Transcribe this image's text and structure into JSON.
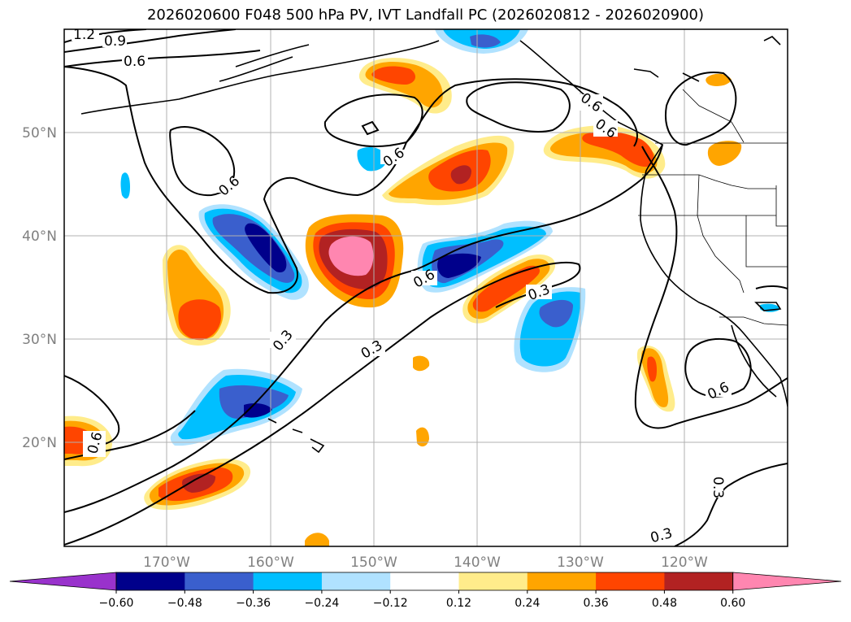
{
  "title": "2026020600 F048 500 hPa PV, IVT Landfall PC (2026020812 - 2026020900)",
  "lat_labels": [
    "50°N",
    "40°N",
    "30°N",
    "20°N"
  ],
  "lon_labels": [
    "170°W",
    "160°W",
    "150°W",
    "140°W",
    "130°W",
    "120°W"
  ],
  "contour_labels": [
    "1.2",
    "0.9",
    "0.6",
    "0.6",
    "0.6",
    "0.6",
    "0.6",
    "0.3",
    "0.3",
    "0.3",
    "0.6",
    "0.6",
    "0.3",
    "0.3",
    "0.6"
  ],
  "colorbar": {
    "ticks": [
      "−0.60",
      "−0.48",
      "−0.36",
      "−0.24",
      "−0.12",
      "0.12",
      "0.24",
      "0.36",
      "0.48",
      "0.60"
    ],
    "colors": [
      "#9932cc",
      "#00008b",
      "#3a5fcd",
      "#00bfff",
      "#b0e2ff",
      "#ffffff",
      "#ffec8b",
      "#ffa500",
      "#ff4500",
      "#b22222",
      "#ff86b0"
    ]
  }
}
